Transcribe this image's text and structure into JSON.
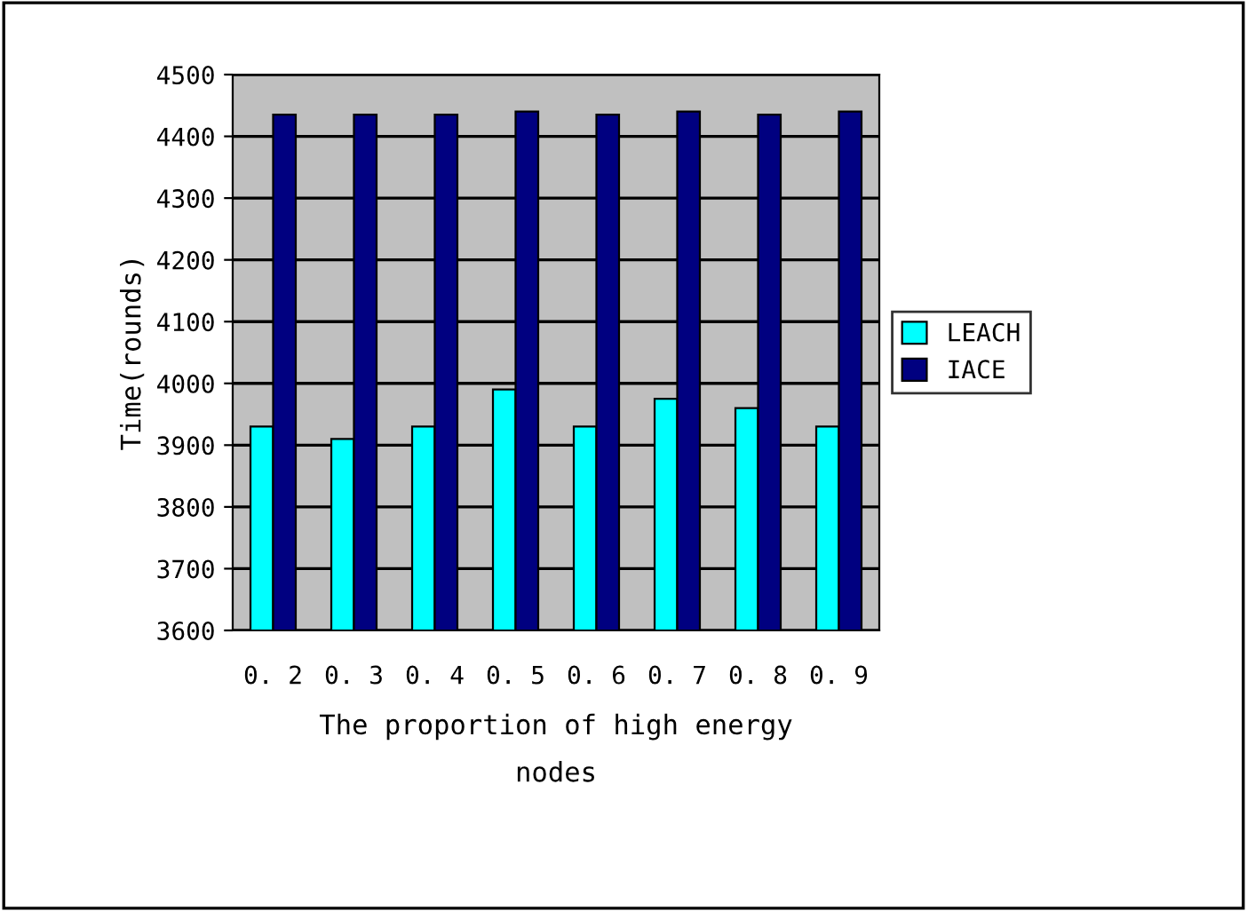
{
  "chart_data": {
    "type": "bar",
    "xlabel": "The proportion of high energy\nnodes",
    "ylabel": "Time(rounds)",
    "categories": [
      "0. 2",
      "0. 3",
      "0. 4",
      "0. 5",
      "0. 6",
      "0. 7",
      "0. 8",
      "0. 9"
    ],
    "series": [
      {
        "name": "LEACH",
        "color": "#00ffff",
        "values": [
          3930,
          3910,
          3930,
          3990,
          3930,
          3975,
          3960,
          3930
        ]
      },
      {
        "name": "IACE",
        "color": "#000080",
        "values": [
          4435,
          4435,
          4435,
          4440,
          4435,
          4440,
          4435,
          4440
        ]
      }
    ],
    "ylim": [
      3600,
      4500
    ],
    "yticks": [
      3600,
      3700,
      3800,
      3900,
      4000,
      4100,
      4200,
      4300,
      4400,
      4500
    ],
    "grid": "y",
    "legend": "right"
  }
}
